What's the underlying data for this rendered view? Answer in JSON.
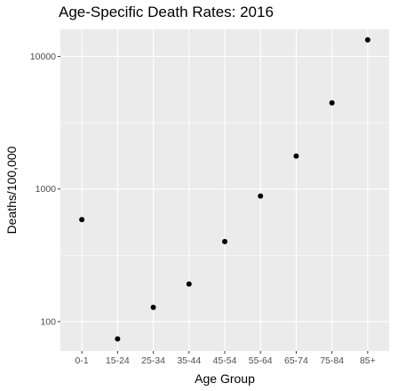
{
  "chart_data": {
    "type": "scatter",
    "title": "Age-Specific Death Rates: 2016",
    "xlabel": "Age Group",
    "ylabel": "Deaths/100,000",
    "y_scale": "log10",
    "categories": [
      "0-1",
      "15-24",
      "25-34",
      "35-44",
      "45-54",
      "55-64",
      "65-74",
      "75-84",
      "85+"
    ],
    "values": [
      588,
      74,
      128,
      192,
      401,
      884,
      1771,
      4460,
      13326
    ],
    "y_ticks": [
      100,
      1000,
      10000
    ],
    "y_tick_labels": [
      "100",
      "1000",
      "10000"
    ],
    "ylim": [
      60,
      16000
    ],
    "grid": true,
    "panel_color": "#ebebeb",
    "grid_color": "#ffffff",
    "point_color": "#000000"
  }
}
